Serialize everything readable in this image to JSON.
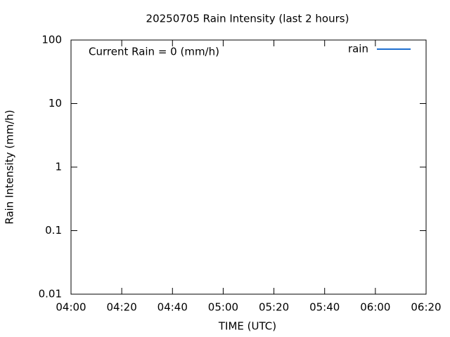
{
  "chart_data": {
    "type": "line",
    "title": "20250705 Rain Intensity (last 2 hours)",
    "annotation": "Current Rain = 0 (mm/h)",
    "x_label": "TIME (UTC)",
    "y_label": "Rain Intensity (mm/h)",
    "x": [],
    "series": [
      {
        "name": "rain",
        "color": "#1f6fd0",
        "values": []
      }
    ],
    "xlim": [
      "04:00",
      "06:20"
    ],
    "xticks": [
      "04:00",
      "04:20",
      "04:40",
      "05:00",
      "05:20",
      "05:40",
      "06:00",
      "06:20"
    ],
    "ylim": [
      0.01,
      100
    ],
    "yticks": [
      100,
      10,
      1,
      0.1,
      0.01
    ],
    "log_y": true,
    "legend": "top-right"
  }
}
